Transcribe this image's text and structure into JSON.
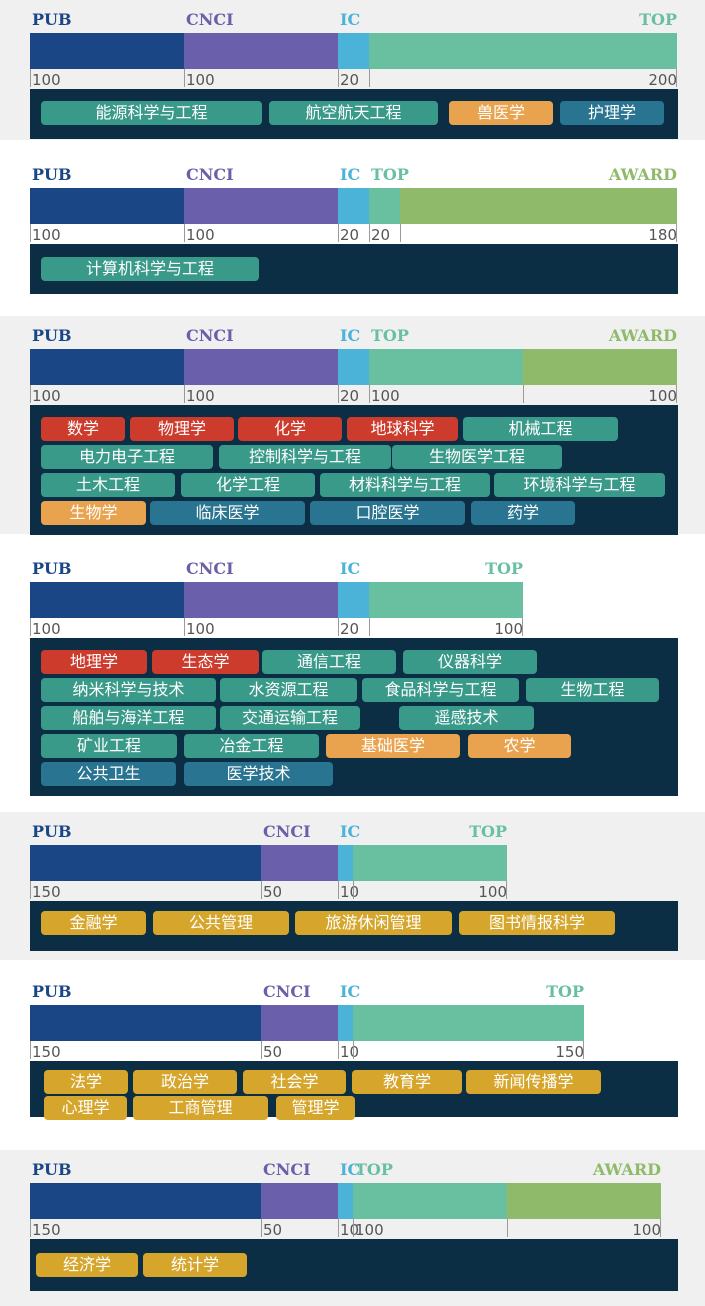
{
  "colors": {
    "PUB": "#1b4686",
    "CNCI": "#6a5faa",
    "IC": "#4cb3d8",
    "TOP": "#68c0a0",
    "AWARD": "#8fba6a",
    "panel_box": "#0b2e45",
    "shaded_bg": "#f0f0f0",
    "tag_green": "#3a9a8a",
    "tag_orange": "#e9a34e",
    "tag_blue": "#297491",
    "tag_red": "#cc3b2c",
    "tag_gold": "#d6a62c"
  },
  "chart_data": [
    {
      "type": "bar",
      "layout": "stacked-horizontal",
      "segments": [
        {
          "label": "PUB",
          "value": 100
        },
        {
          "label": "CNCI",
          "value": 100
        },
        {
          "label": "IC",
          "value": 20
        },
        {
          "label": "TOP",
          "value": 200
        }
      ],
      "disciplines": [
        {
          "name": "能源科学与工程",
          "color": "tag_green"
        },
        {
          "name": "航空航天工程",
          "color": "tag_green"
        },
        {
          "name": "兽医学",
          "color": "tag_orange"
        },
        {
          "name": "护理学",
          "color": "tag_blue"
        }
      ]
    },
    {
      "type": "bar",
      "layout": "stacked-horizontal",
      "segments": [
        {
          "label": "PUB",
          "value": 100
        },
        {
          "label": "CNCI",
          "value": 100
        },
        {
          "label": "IC",
          "value": 20
        },
        {
          "label": "TOP",
          "value": 20
        },
        {
          "label": "AWARD",
          "value": 180
        }
      ],
      "disciplines": [
        {
          "name": "计算机科学与工程",
          "color": "tag_green"
        }
      ]
    },
    {
      "type": "bar",
      "layout": "stacked-horizontal",
      "segments": [
        {
          "label": "PUB",
          "value": 100
        },
        {
          "label": "CNCI",
          "value": 100
        },
        {
          "label": "IC",
          "value": 20
        },
        {
          "label": "TOP",
          "value": 100
        },
        {
          "label": "AWARD",
          "value": 100
        }
      ],
      "disciplines": [
        {
          "name": "数学",
          "color": "tag_red"
        },
        {
          "name": "物理学",
          "color": "tag_red"
        },
        {
          "name": "化学",
          "color": "tag_red"
        },
        {
          "name": "地球科学",
          "color": "tag_red"
        },
        {
          "name": "机械工程",
          "color": "tag_green"
        },
        {
          "name": "电力电子工程",
          "color": "tag_green"
        },
        {
          "name": "控制科学与工程",
          "color": "tag_green"
        },
        {
          "name": "生物医学工程",
          "color": "tag_green"
        },
        {
          "name": "土木工程",
          "color": "tag_green"
        },
        {
          "name": "化学工程",
          "color": "tag_green"
        },
        {
          "name": "材料科学与工程",
          "color": "tag_green"
        },
        {
          "name": "环境科学与工程",
          "color": "tag_green"
        },
        {
          "name": "生物学",
          "color": "tag_orange"
        },
        {
          "name": "临床医学",
          "color": "tag_blue"
        },
        {
          "name": "口腔医学",
          "color": "tag_blue"
        },
        {
          "name": "药学",
          "color": "tag_blue"
        }
      ]
    },
    {
      "type": "bar",
      "layout": "stacked-horizontal",
      "segments": [
        {
          "label": "PUB",
          "value": 100
        },
        {
          "label": "CNCI",
          "value": 100
        },
        {
          "label": "IC",
          "value": 20
        },
        {
          "label": "TOP",
          "value": 100
        }
      ],
      "disciplines": [
        {
          "name": "地理学",
          "color": "tag_red"
        },
        {
          "name": "生态学",
          "color": "tag_red"
        },
        {
          "name": "通信工程",
          "color": "tag_green"
        },
        {
          "name": "仪器科学",
          "color": "tag_green"
        },
        {
          "name": "纳米科学与技术",
          "color": "tag_green"
        },
        {
          "name": "水资源工程",
          "color": "tag_green"
        },
        {
          "name": "食品科学与工程",
          "color": "tag_green"
        },
        {
          "name": "生物工程",
          "color": "tag_green"
        },
        {
          "name": "船舶与海洋工程",
          "color": "tag_green"
        },
        {
          "name": "交通运输工程",
          "color": "tag_green"
        },
        {
          "name": "遥感技术",
          "color": "tag_green"
        },
        {
          "name": "矿业工程",
          "color": "tag_green"
        },
        {
          "name": "冶金工程",
          "color": "tag_green"
        },
        {
          "name": "基础医学",
          "color": "tag_orange"
        },
        {
          "name": "农学",
          "color": "tag_orange"
        },
        {
          "name": "公共卫生",
          "color": "tag_blue"
        },
        {
          "name": "医学技术",
          "color": "tag_blue"
        }
      ]
    },
    {
      "type": "bar",
      "layout": "stacked-horizontal",
      "segments": [
        {
          "label": "PUB",
          "value": 150
        },
        {
          "label": "CNCI",
          "value": 50
        },
        {
          "label": "IC",
          "value": 10
        },
        {
          "label": "TOP",
          "value": 100
        }
      ],
      "disciplines": [
        {
          "name": "金融学",
          "color": "tag_gold"
        },
        {
          "name": "公共管理",
          "color": "tag_gold"
        },
        {
          "name": "旅游休闲管理",
          "color": "tag_gold"
        },
        {
          "name": "图书情报科学",
          "color": "tag_gold"
        }
      ]
    },
    {
      "type": "bar",
      "layout": "stacked-horizontal",
      "segments": [
        {
          "label": "PUB",
          "value": 150
        },
        {
          "label": "CNCI",
          "value": 50
        },
        {
          "label": "IC",
          "value": 10
        },
        {
          "label": "TOP",
          "value": 150
        }
      ],
      "disciplines": [
        {
          "name": "法学",
          "color": "tag_gold"
        },
        {
          "name": "政治学",
          "color": "tag_gold"
        },
        {
          "name": "社会学",
          "color": "tag_gold"
        },
        {
          "name": "教育学",
          "color": "tag_gold"
        },
        {
          "name": "新闻传播学",
          "color": "tag_gold"
        },
        {
          "name": "心理学",
          "color": "tag_gold"
        },
        {
          "name": "工商管理",
          "color": "tag_gold"
        },
        {
          "name": "管理学",
          "color": "tag_gold"
        }
      ]
    },
    {
      "type": "bar",
      "layout": "stacked-horizontal",
      "segments": [
        {
          "label": "PUB",
          "value": 150
        },
        {
          "label": "CNCI",
          "value": 50
        },
        {
          "label": "IC",
          "value": 10
        },
        {
          "label": "TOP",
          "value": 100
        },
        {
          "label": "AWARD",
          "value": 100
        }
      ],
      "disciplines": [
        {
          "name": "经济学",
          "color": "tag_gold"
        },
        {
          "name": "统计学",
          "color": "tag_gold"
        }
      ]
    }
  ]
}
